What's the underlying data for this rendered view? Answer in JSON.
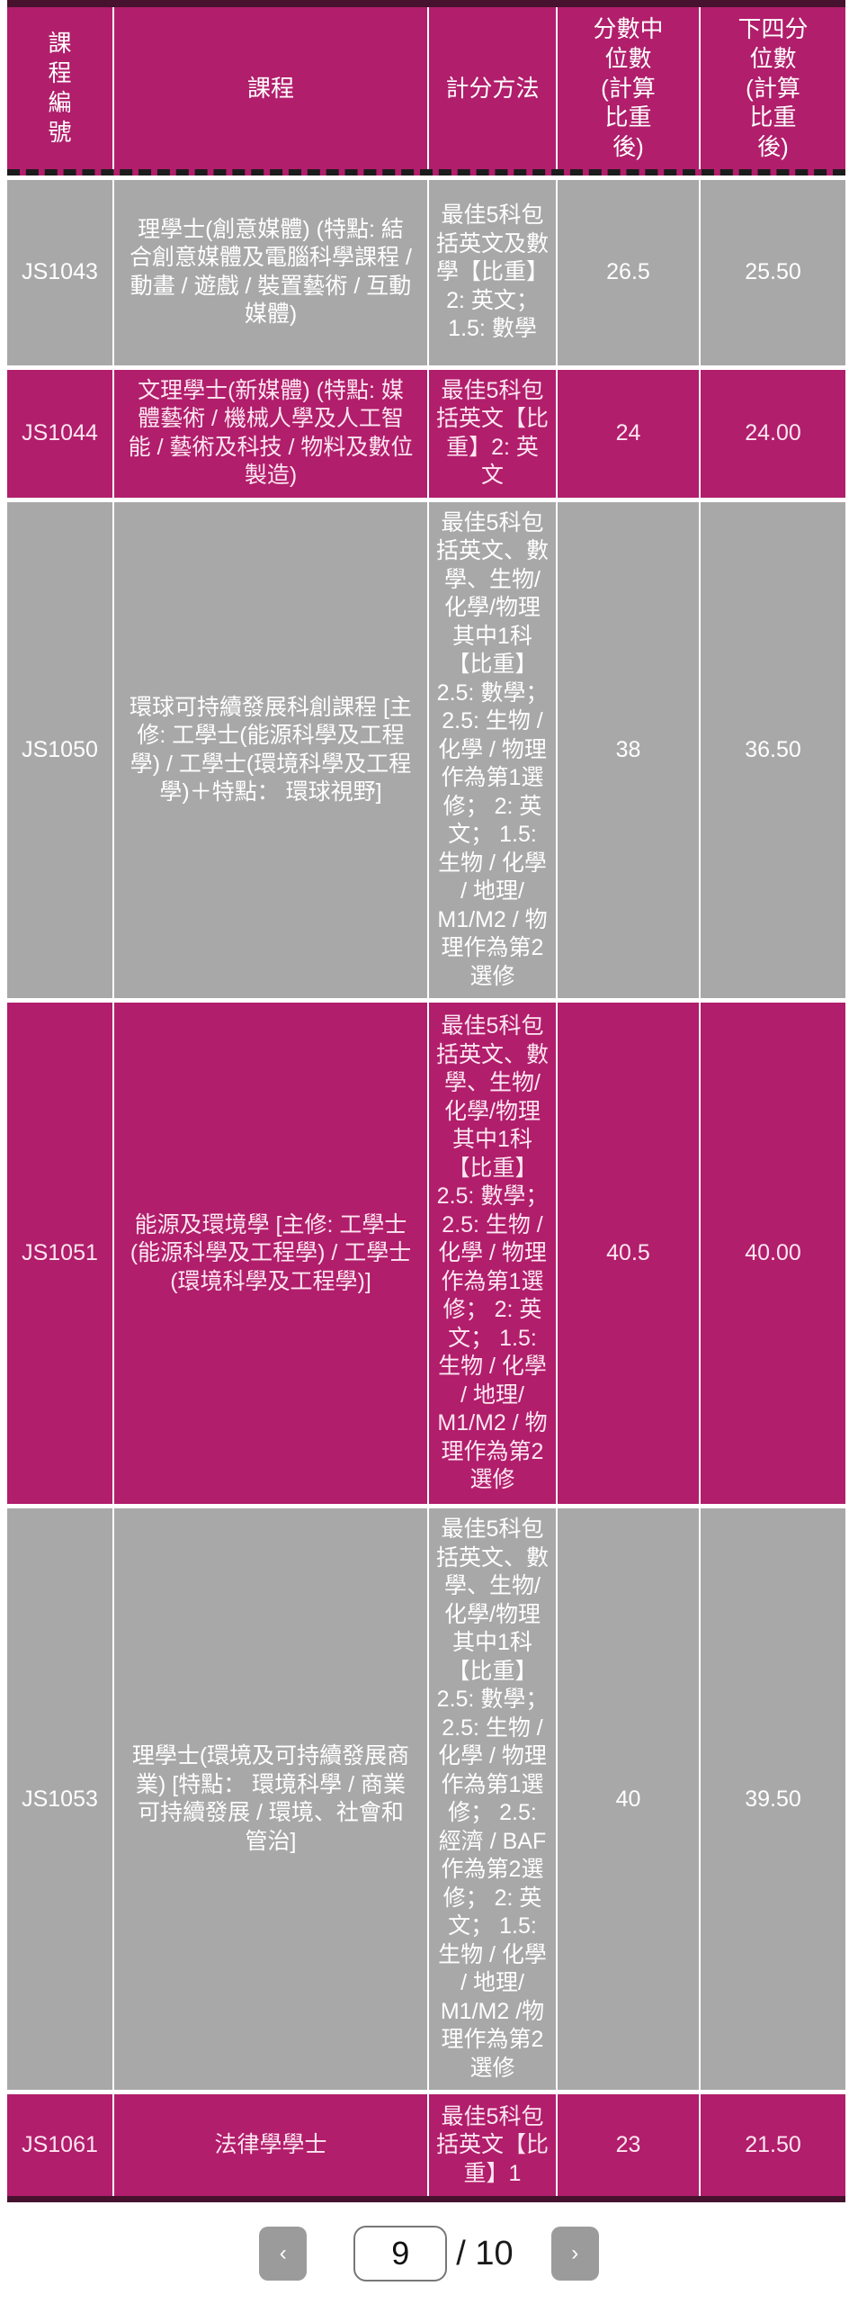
{
  "colors": {
    "accent_magenta": "#b11e6b",
    "row_gray": "#a8a8a8",
    "table_edge_dark": "#47122e",
    "pagination_button_gray": "#9b9b9b"
  },
  "table": {
    "columns": [
      {
        "label": "課程編號"
      },
      {
        "label": "課程"
      },
      {
        "label": "計分方法"
      },
      {
        "label": "分數中位數(計算比重後)"
      },
      {
        "label": "下四分位數(計算比重後)"
      }
    ],
    "rows": [
      {
        "code": "JS1043",
        "course": "理學士(創意媒體) (特點: 結合創意媒體及電腦科學課程 / 動畫 / 遊戲 / 裝置藝術 / 互動媒體)",
        "method": "最佳5科包括英文及數學【比重】2: 英文； 1.5: 數學",
        "median": "26.5",
        "quartile": "25.50"
      },
      {
        "code": "JS1044",
        "course": "文理學士(新媒體) (特點: 媒體藝術 / 機械人學及人工智能 / 藝術及科技 / 物料及數位製造)",
        "method": "最佳5科包括英文【比重】2: 英文",
        "median": "24",
        "quartile": "24.00"
      },
      {
        "code": "JS1050",
        "course": "環球可持續發展科創課程 [主修: 工學士(能源科學及工程學) / 工學士(環境科學及工程學)＋特點： 環球視野]",
        "method": "最佳5科包括英文、數學、生物/化學/物理其中1科【比重】 2.5: 數學； 2.5: 生物 / 化學 / 物理作為第1選修； 2: 英文； 1.5: 生物 / 化學 / 地理/ M1/M2 / 物理作為第2選修",
        "median": "38",
        "quartile": "36.50"
      },
      {
        "code": "JS1051",
        "course": "能源及環境學 [主修: 工學士(能源科學及工程學) / 工學士(環境科學及工程學)]",
        "method": "最佳5科包括英文、數學、生物/化學/物理其中1科【比重】 2.5: 數學； 2.5: 生物 / 化學 / 物理作為第1選修； 2: 英文； 1.5: 生物 / 化學 / 地理/ M1/M2 / 物理作為第2選修",
        "median": "40.5",
        "quartile": "40.00"
      },
      {
        "code": "JS1053",
        "course": "理學士(環境及可持續發展商業) [特點： 環境科學 / 商業可持續發展 / 環境、社會和管治]",
        "method": "最佳5科包括英文、數學、生物/化學/物理其中1科【比重】 2.5: 數學； 2.5: 生物 / 化學 / 物理作為第1選修； 2.5: 經濟 / BAF作為第2選修； 2: 英文； 1.5: 生物 / 化學 / 地理/ M1/M2 /物理作為第2選修",
        "median": "40",
        "quartile": "39.50"
      },
      {
        "code": "JS1061",
        "course": "法律學學士",
        "method": "最佳5科包括英文【比重】1",
        "median": "23",
        "quartile": "21.50"
      }
    ]
  },
  "pagination": {
    "prev_label": "‹",
    "page_value": "9",
    "total_label": "/ 10",
    "next_label": "›"
  }
}
